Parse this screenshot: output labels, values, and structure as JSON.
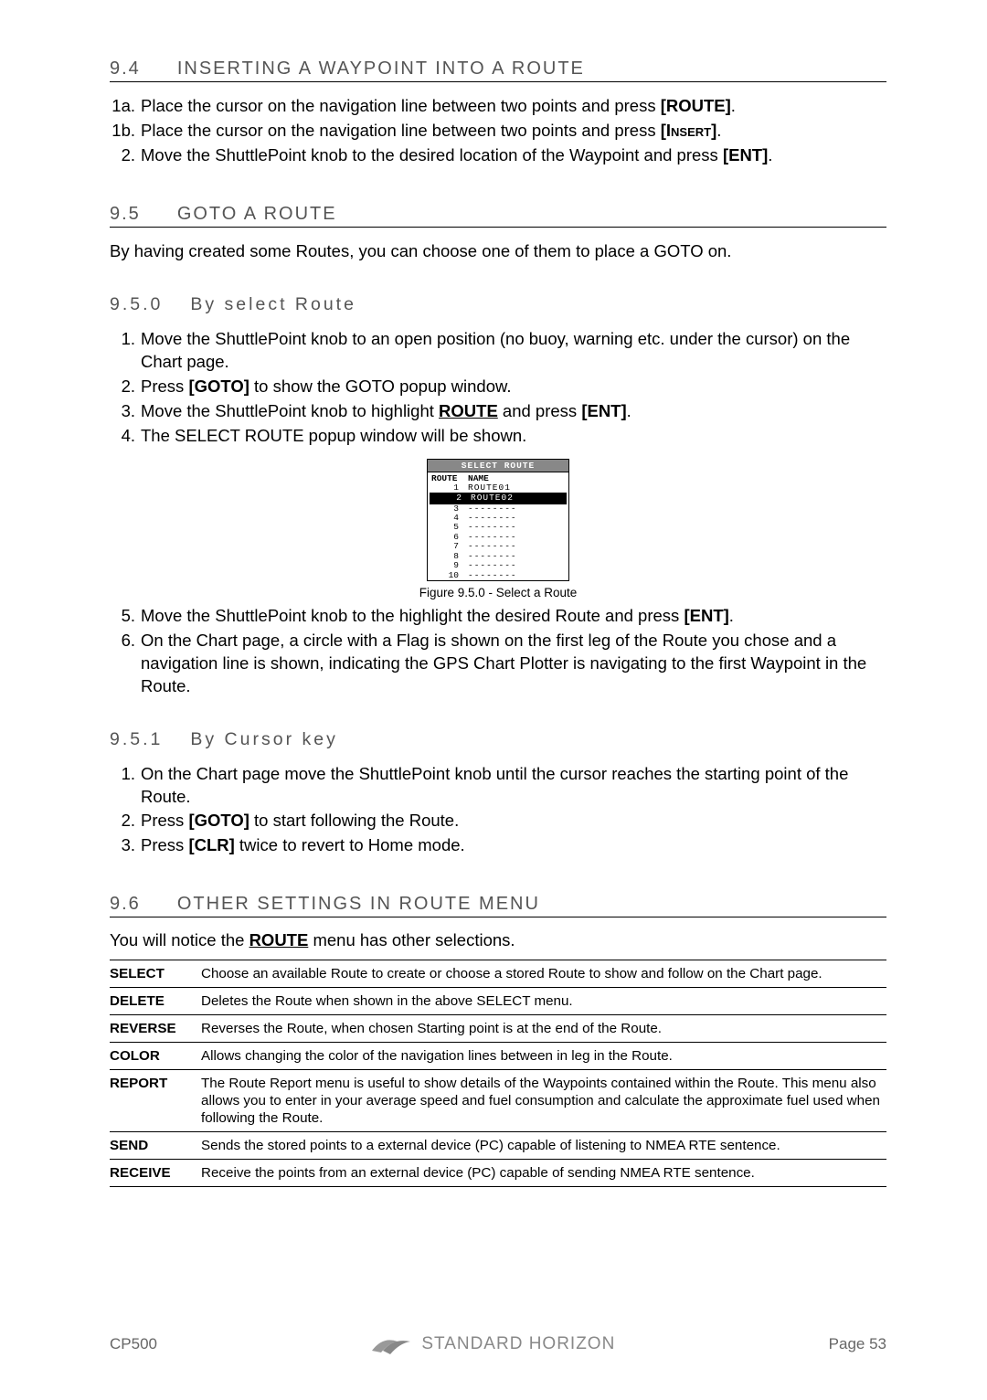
{
  "sections": {
    "s94": {
      "num": "9.4",
      "title": "INSERTING A WAYPOINT INTO A ROUTE"
    },
    "s95": {
      "num": "9.5",
      "title": "GOTO A ROUTE"
    },
    "s950": {
      "num": "9.5.0",
      "title": "By select Route"
    },
    "s951": {
      "num": "9.5.1",
      "title": "By Cursor key"
    },
    "s96": {
      "num": "9.6",
      "title": "OTHER SETTINGS IN ROUTE MENU"
    }
  },
  "s94_steps": [
    {
      "m": "1a.",
      "pre": "Place the cursor on the navigation line between two points and press ",
      "key": "[ROUTE]",
      "post": "."
    },
    {
      "m": "1b.",
      "pre": "Place the cursor on the navigation line between two points and press ",
      "key": "[Insert]",
      "post": ".",
      "scaps": true
    },
    {
      "m": "2.",
      "pre": "Move the ShuttlePoint knob to the desired location of the Waypoint and press ",
      "key": "[ENT]",
      "post": "."
    }
  ],
  "s95_intro": "By having created some Routes, you can choose one of them to place a GOTO on.",
  "s950_steps_a": {
    "1": "Move the ShuttlePoint knob to an open position (no buoy, warning etc. under the cursor) on the Chart page.",
    "2_pre": "Press ",
    "2_key": "[GOTO]",
    "2_post": " to show the GOTO popup window.",
    "3_pre": "Move the ShuttlePoint knob to highlight ",
    "3_und": "ROUTE",
    "3_mid": " and press ",
    "3_key": "[ENT]",
    "3_post": ".",
    "4": "The SELECT ROUTE popup window will be shown."
  },
  "select_route": {
    "title": "SELECT  ROUTE",
    "col1": "ROUTE",
    "col2": "NAME",
    "rows": [
      {
        "n": "1",
        "name": "ROUTE01",
        "sel": false
      },
      {
        "n": "2",
        "name": "ROUTE02",
        "sel": true
      },
      {
        "n": "3",
        "name": "--------",
        "sel": false
      },
      {
        "n": "4",
        "name": "--------",
        "sel": false
      },
      {
        "n": "5",
        "name": "--------",
        "sel": false
      },
      {
        "n": "6",
        "name": "--------",
        "sel": false
      },
      {
        "n": "7",
        "name": "--------",
        "sel": false
      },
      {
        "n": "8",
        "name": "--------",
        "sel": false
      },
      {
        "n": "9",
        "name": "--------",
        "sel": false
      },
      {
        "n": "10",
        "name": "--------",
        "sel": false
      }
    ],
    "caption": "Figure 9.5.0 -  Select a Route"
  },
  "s950_steps_b": {
    "5_pre": "Move the ShuttlePoint knob to the highlight the desired Route and press ",
    "5_key": "[ENT]",
    "5_post": ".",
    "6": "On the Chart page, a circle with a Flag is shown on the first leg of the Route you chose and a navigation line is shown, indicating the GPS Chart Plotter is navigating to the first Waypoint in the Route."
  },
  "s951_steps": {
    "1": "On the Chart page move the ShuttlePoint knob until the cursor reaches the starting point of the Route.",
    "2_pre": "Press ",
    "2_key": "[GOTO]",
    "2_post": " to start following the Route.",
    "3_pre": "Press ",
    "3_key": "[CLR]",
    "3_post": " twice to revert to Home mode."
  },
  "s96_intro_pre": "You will notice the ",
  "s96_intro_und": "ROUTE",
  "s96_intro_post": " menu has other selections.",
  "settings": [
    {
      "k": "SELECT",
      "v": "Choose an available Route to create or choose a stored Route to show and follow on the Chart page."
    },
    {
      "k": "DELETE",
      "v": "Deletes the Route when shown in the above SELECT menu."
    },
    {
      "k": "REVERSE",
      "v": "Reverses the Route, when chosen Starting point is at the end of the Route."
    },
    {
      "k": "COLOR",
      "v": "Allows changing the color of the navigation lines between in leg in the Route."
    },
    {
      "k": "REPORT",
      "v": "The Route Report menu is useful to show details of the Waypoints contained within the Route. This menu also allows you to enter in your average speed and fuel consumption and calculate the approximate fuel used when following the Route."
    },
    {
      "k": "SEND",
      "v": "Sends the stored points to a external device (PC) capable of listening to NMEA RTE sentence."
    },
    {
      "k": "RECEIVE",
      "v": "Receive the points from an external device (PC) capable of sending NMEA RTE sentence."
    }
  ],
  "footer": {
    "left": "CP500",
    "brand": "STANDARD HORIZON",
    "right": "Page 53"
  }
}
